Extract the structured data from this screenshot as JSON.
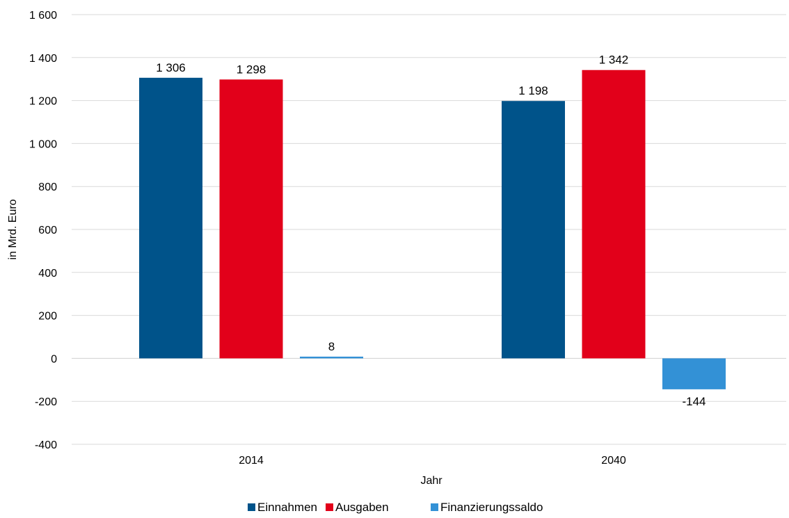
{
  "chart_data": {
    "type": "bar",
    "categories": [
      "2014",
      "2040"
    ],
    "series": [
      {
        "name": "Einnahmen",
        "values": [
          1306,
          1198
        ],
        "labels": [
          "1 306",
          "1 198"
        ],
        "color": "#00538a"
      },
      {
        "name": "Ausgaben",
        "values": [
          1298,
          1342
        ],
        "labels": [
          "1 298",
          "1 342"
        ],
        "color": "#e2001a"
      },
      {
        "name": "Finanzierungssaldo",
        "values": [
          8,
          -144
        ],
        "labels": [
          "8",
          "-144"
        ],
        "color": "#3391d6"
      }
    ],
    "xlabel": "Jahr",
    "ylabel": "in Mrd. Euro",
    "ylim": [
      -400,
      1600
    ],
    "yticks": [
      1600,
      1400,
      1200,
      1000,
      800,
      600,
      400,
      200,
      0,
      -200,
      -400
    ],
    "ytick_labels": [
      "1 600",
      "1 400",
      "1 200",
      "1 000",
      "800",
      "600",
      "400",
      "200",
      "0",
      "-200",
      "-400"
    ],
    "grid": true,
    "legend_position": "bottom"
  }
}
